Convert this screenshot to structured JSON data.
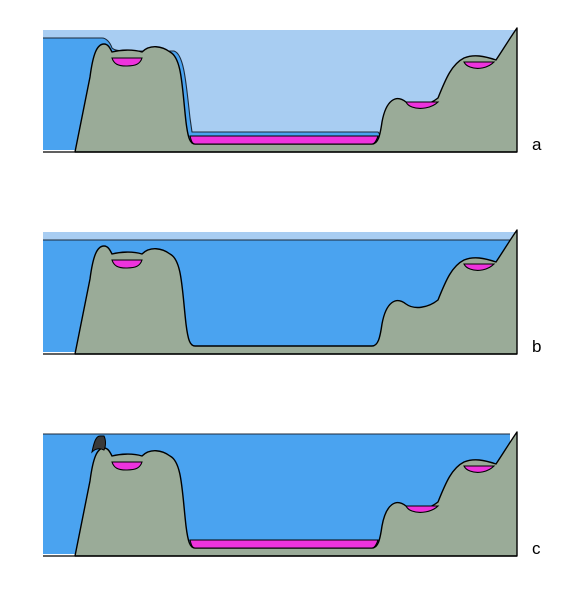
{
  "colors": {
    "background": "#ffffff",
    "sea": "#4aa3f0",
    "sea_light": "#a8cdf2",
    "ground": "#9aab98",
    "lake": "#ee33dd",
    "dark_rock": "#3a3a3a",
    "outline": "#000000"
  },
  "panels": [
    {
      "id": "a",
      "label": "a"
    },
    {
      "id": "b",
      "label": "b"
    },
    {
      "id": "c",
      "label": "c"
    }
  ]
}
